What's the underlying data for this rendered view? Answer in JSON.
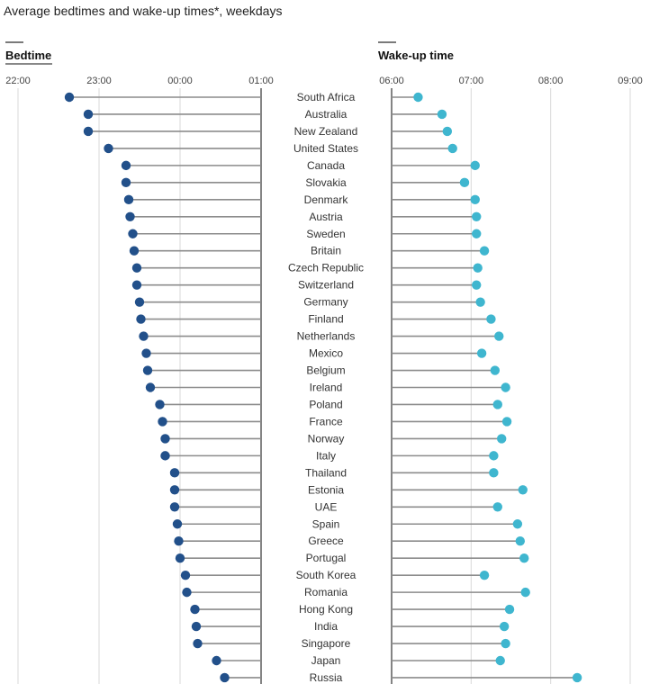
{
  "title": "Average bedtimes and wake-up times*, weekdays",
  "colors": {
    "bedtime": "#22508a",
    "wake": "#3fb6cf",
    "stem": "#8c8c8c",
    "grid": "#d9d9d9",
    "baseline": "#333333",
    "panel_bar": "#7a7a7a"
  },
  "chart_data": [
    {
      "type": "dot",
      "title": "Bedtime",
      "xlabel": "",
      "ylabel": "",
      "xlim": [
        "22:00",
        "01:00"
      ],
      "ticks": [
        "22:00",
        "23:00",
        "00:00",
        "01:00"
      ],
      "grid": true,
      "categories": [
        "South Africa",
        "Australia",
        "New Zealand",
        "United States",
        "Canada",
        "Slovakia",
        "Denmark",
        "Austria",
        "Sweden",
        "Britain",
        "Czech Republic",
        "Switzerland",
        "Germany",
        "Finland",
        "Netherlands",
        "Mexico",
        "Belgium",
        "Ireland",
        "Poland",
        "France",
        "Norway",
        "Italy",
        "Thailand",
        "Estonia",
        "UAE",
        "Spain",
        "Greece",
        "Portugal",
        "South Korea",
        "Romania",
        "Hong Kong",
        "India",
        "Singapore",
        "Japan",
        "Russia"
      ],
      "values": [
        "22:38",
        "22:52",
        "22:52",
        "23:07",
        "23:20",
        "23:20",
        "23:22",
        "23:23",
        "23:25",
        "23:26",
        "23:28",
        "23:28",
        "23:30",
        "23:31",
        "23:33",
        "23:35",
        "23:36",
        "23:38",
        "23:45",
        "23:47",
        "23:49",
        "23:49",
        "23:56",
        "23:56",
        "23:56",
        "23:58",
        "23:59",
        "00:00",
        "00:04",
        "00:05",
        "00:11",
        "00:12",
        "00:13",
        "00:27",
        "00:33"
      ]
    },
    {
      "type": "dot",
      "title": "Wake-up time",
      "xlabel": "",
      "ylabel": "",
      "xlim": [
        "06:00",
        "09:00"
      ],
      "ticks": [
        "06:00",
        "07:00",
        "08:00",
        "09:00"
      ],
      "grid": true,
      "categories": [
        "South Africa",
        "Australia",
        "New Zealand",
        "United States",
        "Canada",
        "Slovakia",
        "Denmark",
        "Austria",
        "Sweden",
        "Britain",
        "Czech Republic",
        "Switzerland",
        "Germany",
        "Finland",
        "Netherlands",
        "Mexico",
        "Belgium",
        "Ireland",
        "Poland",
        "France",
        "Norway",
        "Italy",
        "Thailand",
        "Estonia",
        "UAE",
        "Spain",
        "Greece",
        "Portugal",
        "South Korea",
        "Romania",
        "Hong Kong",
        "India",
        "Singapore",
        "Japan",
        "Russia"
      ],
      "values": [
        "06:20",
        "06:38",
        "06:42",
        "06:46",
        "07:03",
        "06:55",
        "07:03",
        "07:04",
        "07:04",
        "07:10",
        "07:05",
        "07:04",
        "07:07",
        "07:15",
        "07:21",
        "07:08",
        "07:18",
        "07:26",
        "07:20",
        "07:27",
        "07:23",
        "07:17",
        "07:17",
        "07:39",
        "07:20",
        "07:35",
        "07:37",
        "07:40",
        "07:10",
        "07:41",
        "07:29",
        "07:25",
        "07:26",
        "07:22",
        "08:20"
      ]
    }
  ]
}
